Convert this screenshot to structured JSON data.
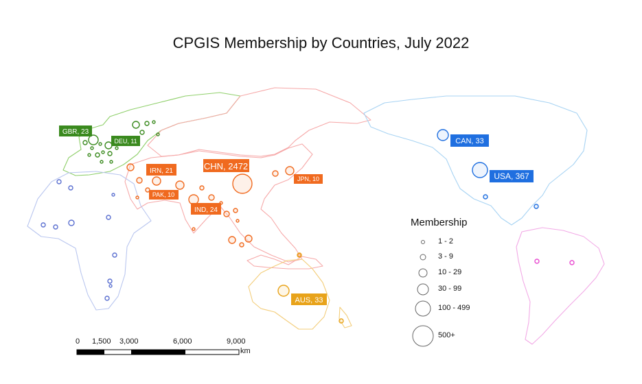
{
  "title": "CPGIS Membership by Countries, July 2022",
  "colors": {
    "europe": "#3a8a1e",
    "asia": "#f06a1f",
    "americas_north": "#1f6fe0",
    "oceania": "#e8a31a",
    "africa": "#6a7bd6",
    "south_america": "#e84bd0"
  },
  "country_labels": [
    {
      "code": "GBR",
      "count": 23,
      "text": "GBR, 23",
      "region": "europe"
    },
    {
      "code": "DEU",
      "count": 11,
      "text": "DEU, 11",
      "region": "europe"
    },
    {
      "code": "IRN",
      "count": 21,
      "text": "IRN, 21",
      "region": "asia"
    },
    {
      "code": "CHN",
      "count": 2472,
      "text": "CHN, 2472",
      "region": "asia"
    },
    {
      "code": "JPN",
      "count": 10,
      "text": "JPN, 10",
      "region": "asia"
    },
    {
      "code": "PAK",
      "count": 10,
      "text": "PAK, 10",
      "region": "asia"
    },
    {
      "code": "IND",
      "count": 24,
      "text": "IND, 24",
      "region": "asia"
    },
    {
      "code": "CAN",
      "count": 33,
      "text": "CAN, 33",
      "region": "americas_north"
    },
    {
      "code": "USA",
      "count": 367,
      "text": "USA, 367",
      "region": "americas_north"
    },
    {
      "code": "AUS",
      "count": 33,
      "text": "AUS, 33",
      "region": "oceania"
    }
  ],
  "legend": {
    "title": "Membership",
    "classes": [
      "1 - 2",
      "3 - 9",
      "10 - 29",
      "30 - 99",
      "100 - 499",
      "500+"
    ]
  },
  "scale_bar": {
    "labels": [
      "0",
      "1,500",
      "3,000",
      "6,000",
      "9,000"
    ],
    "unit": "km"
  }
}
